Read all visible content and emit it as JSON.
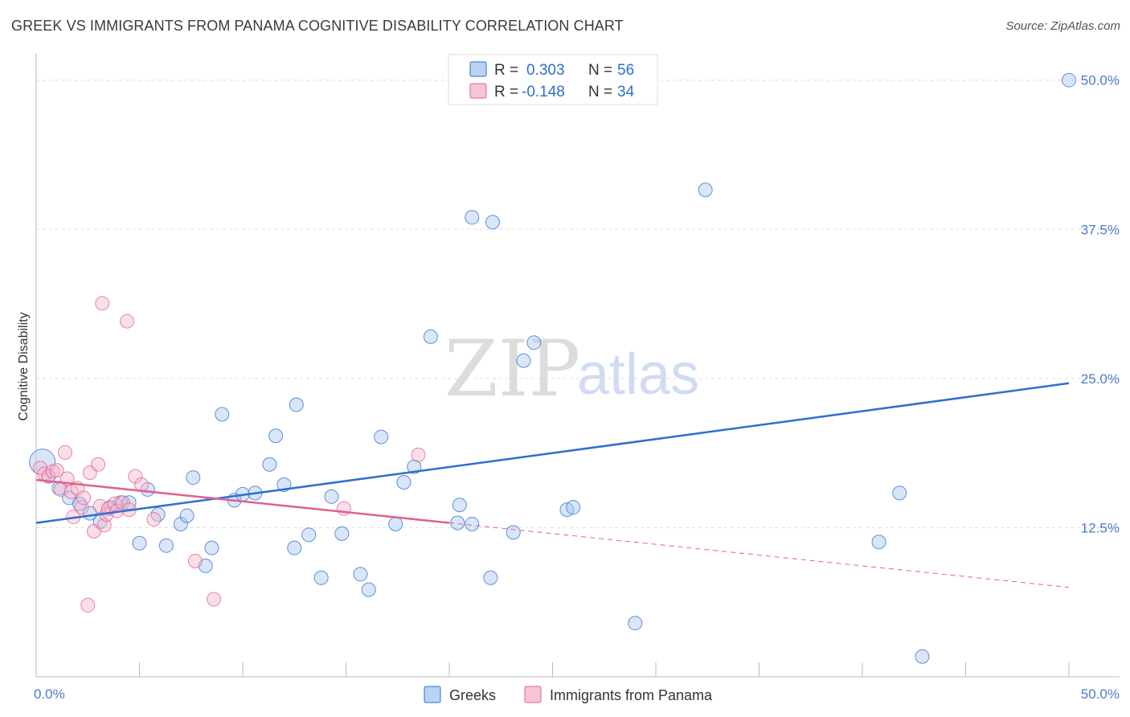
{
  "title": "GREEK VS IMMIGRANTS FROM PANAMA COGNITIVE DISABILITY CORRELATION CHART",
  "source": "Source: ZipAtlas.com",
  "watermark": {
    "zip": "ZIP",
    "atlas": "atlas"
  },
  "colors": {
    "blue": "#2e6fcf",
    "blue_fill": "#a9c8f0",
    "pink": "#e0608f",
    "pink_fill": "#f4b5cb",
    "grid": "#dddddd",
    "axis": "#bbbbbb"
  },
  "legend": {
    "series1": {
      "r_label": "R =",
      "r_value": "0.303",
      "n_label": "N =",
      "n_value": "56"
    },
    "series2": {
      "r_label": "R =",
      "r_value": "-0.148",
      "n_label": "N =",
      "n_value": "34"
    }
  },
  "chart_data": {
    "type": "scatter",
    "title": "GREEK VS IMMIGRANTS FROM PANAMA COGNITIVE DISABILITY CORRELATION CHART",
    "xlabel": "",
    "ylabel": "Cognitive Disability",
    "xlim": [
      0,
      50
    ],
    "ylim": [
      0,
      52
    ],
    "x_tick_labels": [
      "0.0%",
      "50.0%"
    ],
    "y_ticks": [
      12.5,
      25.0,
      37.5,
      50.0
    ],
    "y_tick_labels": [
      "12.5%",
      "25.0%",
      "37.5%",
      "50.0%"
    ],
    "series": [
      {
        "name": "Greeks",
        "color": "#2e6fcf",
        "points": [
          [
            0.3,
            18.0
          ],
          [
            0.6,
            16.8
          ],
          [
            1.1,
            15.8
          ],
          [
            1.6,
            15.0
          ],
          [
            2.1,
            14.5
          ],
          [
            2.6,
            13.7
          ],
          [
            3.1,
            13.0
          ],
          [
            3.6,
            14.2
          ],
          [
            4.1,
            14.6
          ],
          [
            4.5,
            14.6
          ],
          [
            5.0,
            11.2
          ],
          [
            5.4,
            15.7
          ],
          [
            5.9,
            13.6
          ],
          [
            6.3,
            11.0
          ],
          [
            7.0,
            12.8
          ],
          [
            7.3,
            13.5
          ],
          [
            7.6,
            16.7
          ],
          [
            8.2,
            9.3
          ],
          [
            8.5,
            10.8
          ],
          [
            9.0,
            22.0
          ],
          [
            9.6,
            14.8
          ],
          [
            10.0,
            15.3
          ],
          [
            10.6,
            15.4
          ],
          [
            11.3,
            17.8
          ],
          [
            11.6,
            20.2
          ],
          [
            12.0,
            16.1
          ],
          [
            12.5,
            10.8
          ],
          [
            12.6,
            22.8
          ],
          [
            13.2,
            11.9
          ],
          [
            13.8,
            8.3
          ],
          [
            14.3,
            15.1
          ],
          [
            14.8,
            12.0
          ],
          [
            15.7,
            8.6
          ],
          [
            16.1,
            7.3
          ],
          [
            16.7,
            20.1
          ],
          [
            17.4,
            12.8
          ],
          [
            17.8,
            16.3
          ],
          [
            18.3,
            17.6
          ],
          [
            19.1,
            28.5
          ],
          [
            20.4,
            12.9
          ],
          [
            20.5,
            14.4
          ],
          [
            21.1,
            12.8
          ],
          [
            21.1,
            38.5
          ],
          [
            22.0,
            8.3
          ],
          [
            22.1,
            38.1
          ],
          [
            23.1,
            12.1
          ],
          [
            23.6,
            26.5
          ],
          [
            24.1,
            28.0
          ],
          [
            25.7,
            14.0
          ],
          [
            26.0,
            14.2
          ],
          [
            29.0,
            4.5
          ],
          [
            32.4,
            40.8
          ],
          [
            40.8,
            11.3
          ],
          [
            41.8,
            15.4
          ],
          [
            42.9,
            1.7
          ],
          [
            50.0,
            50.0
          ]
        ],
        "trend": {
          "x": [
            0.0,
            50.0
          ],
          "y": [
            12.9,
            24.6
          ]
        }
      },
      {
        "name": "Immigrants from Panama",
        "color": "#e0608f",
        "points": [
          [
            0.2,
            17.5
          ],
          [
            0.4,
            17.0
          ],
          [
            0.6,
            16.8
          ],
          [
            0.8,
            17.2
          ],
          [
            1.0,
            17.3
          ],
          [
            1.2,
            15.7
          ],
          [
            1.4,
            18.8
          ],
          [
            1.5,
            16.6
          ],
          [
            1.7,
            15.5
          ],
          [
            1.8,
            13.4
          ],
          [
            2.0,
            15.8
          ],
          [
            2.2,
            14.2
          ],
          [
            2.3,
            15.0
          ],
          [
            2.5,
            6.0
          ],
          [
            2.6,
            17.1
          ],
          [
            2.8,
            12.2
          ],
          [
            3.0,
            17.8
          ],
          [
            3.1,
            14.3
          ],
          [
            3.3,
            12.7
          ],
          [
            3.4,
            13.6
          ],
          [
            3.5,
            14.1
          ],
          [
            3.8,
            14.5
          ],
          [
            3.9,
            13.9
          ],
          [
            4.2,
            14.6
          ],
          [
            4.4,
            29.8
          ],
          [
            4.5,
            14.0
          ],
          [
            4.8,
            16.8
          ],
          [
            5.1,
            16.1
          ],
          [
            5.7,
            13.2
          ],
          [
            7.7,
            9.7
          ],
          [
            8.6,
            6.5
          ],
          [
            14.9,
            14.1
          ],
          [
            18.5,
            18.6
          ],
          [
            3.2,
            31.3
          ]
        ],
        "trend_solid": {
          "x": [
            0.0,
            20.0
          ],
          "y": [
            16.5,
            12.9
          ]
        },
        "trend_dashed": {
          "x": [
            20.0,
            50.0
          ],
          "y": [
            12.9,
            7.5
          ]
        }
      }
    ],
    "legend_position": "top-center"
  }
}
